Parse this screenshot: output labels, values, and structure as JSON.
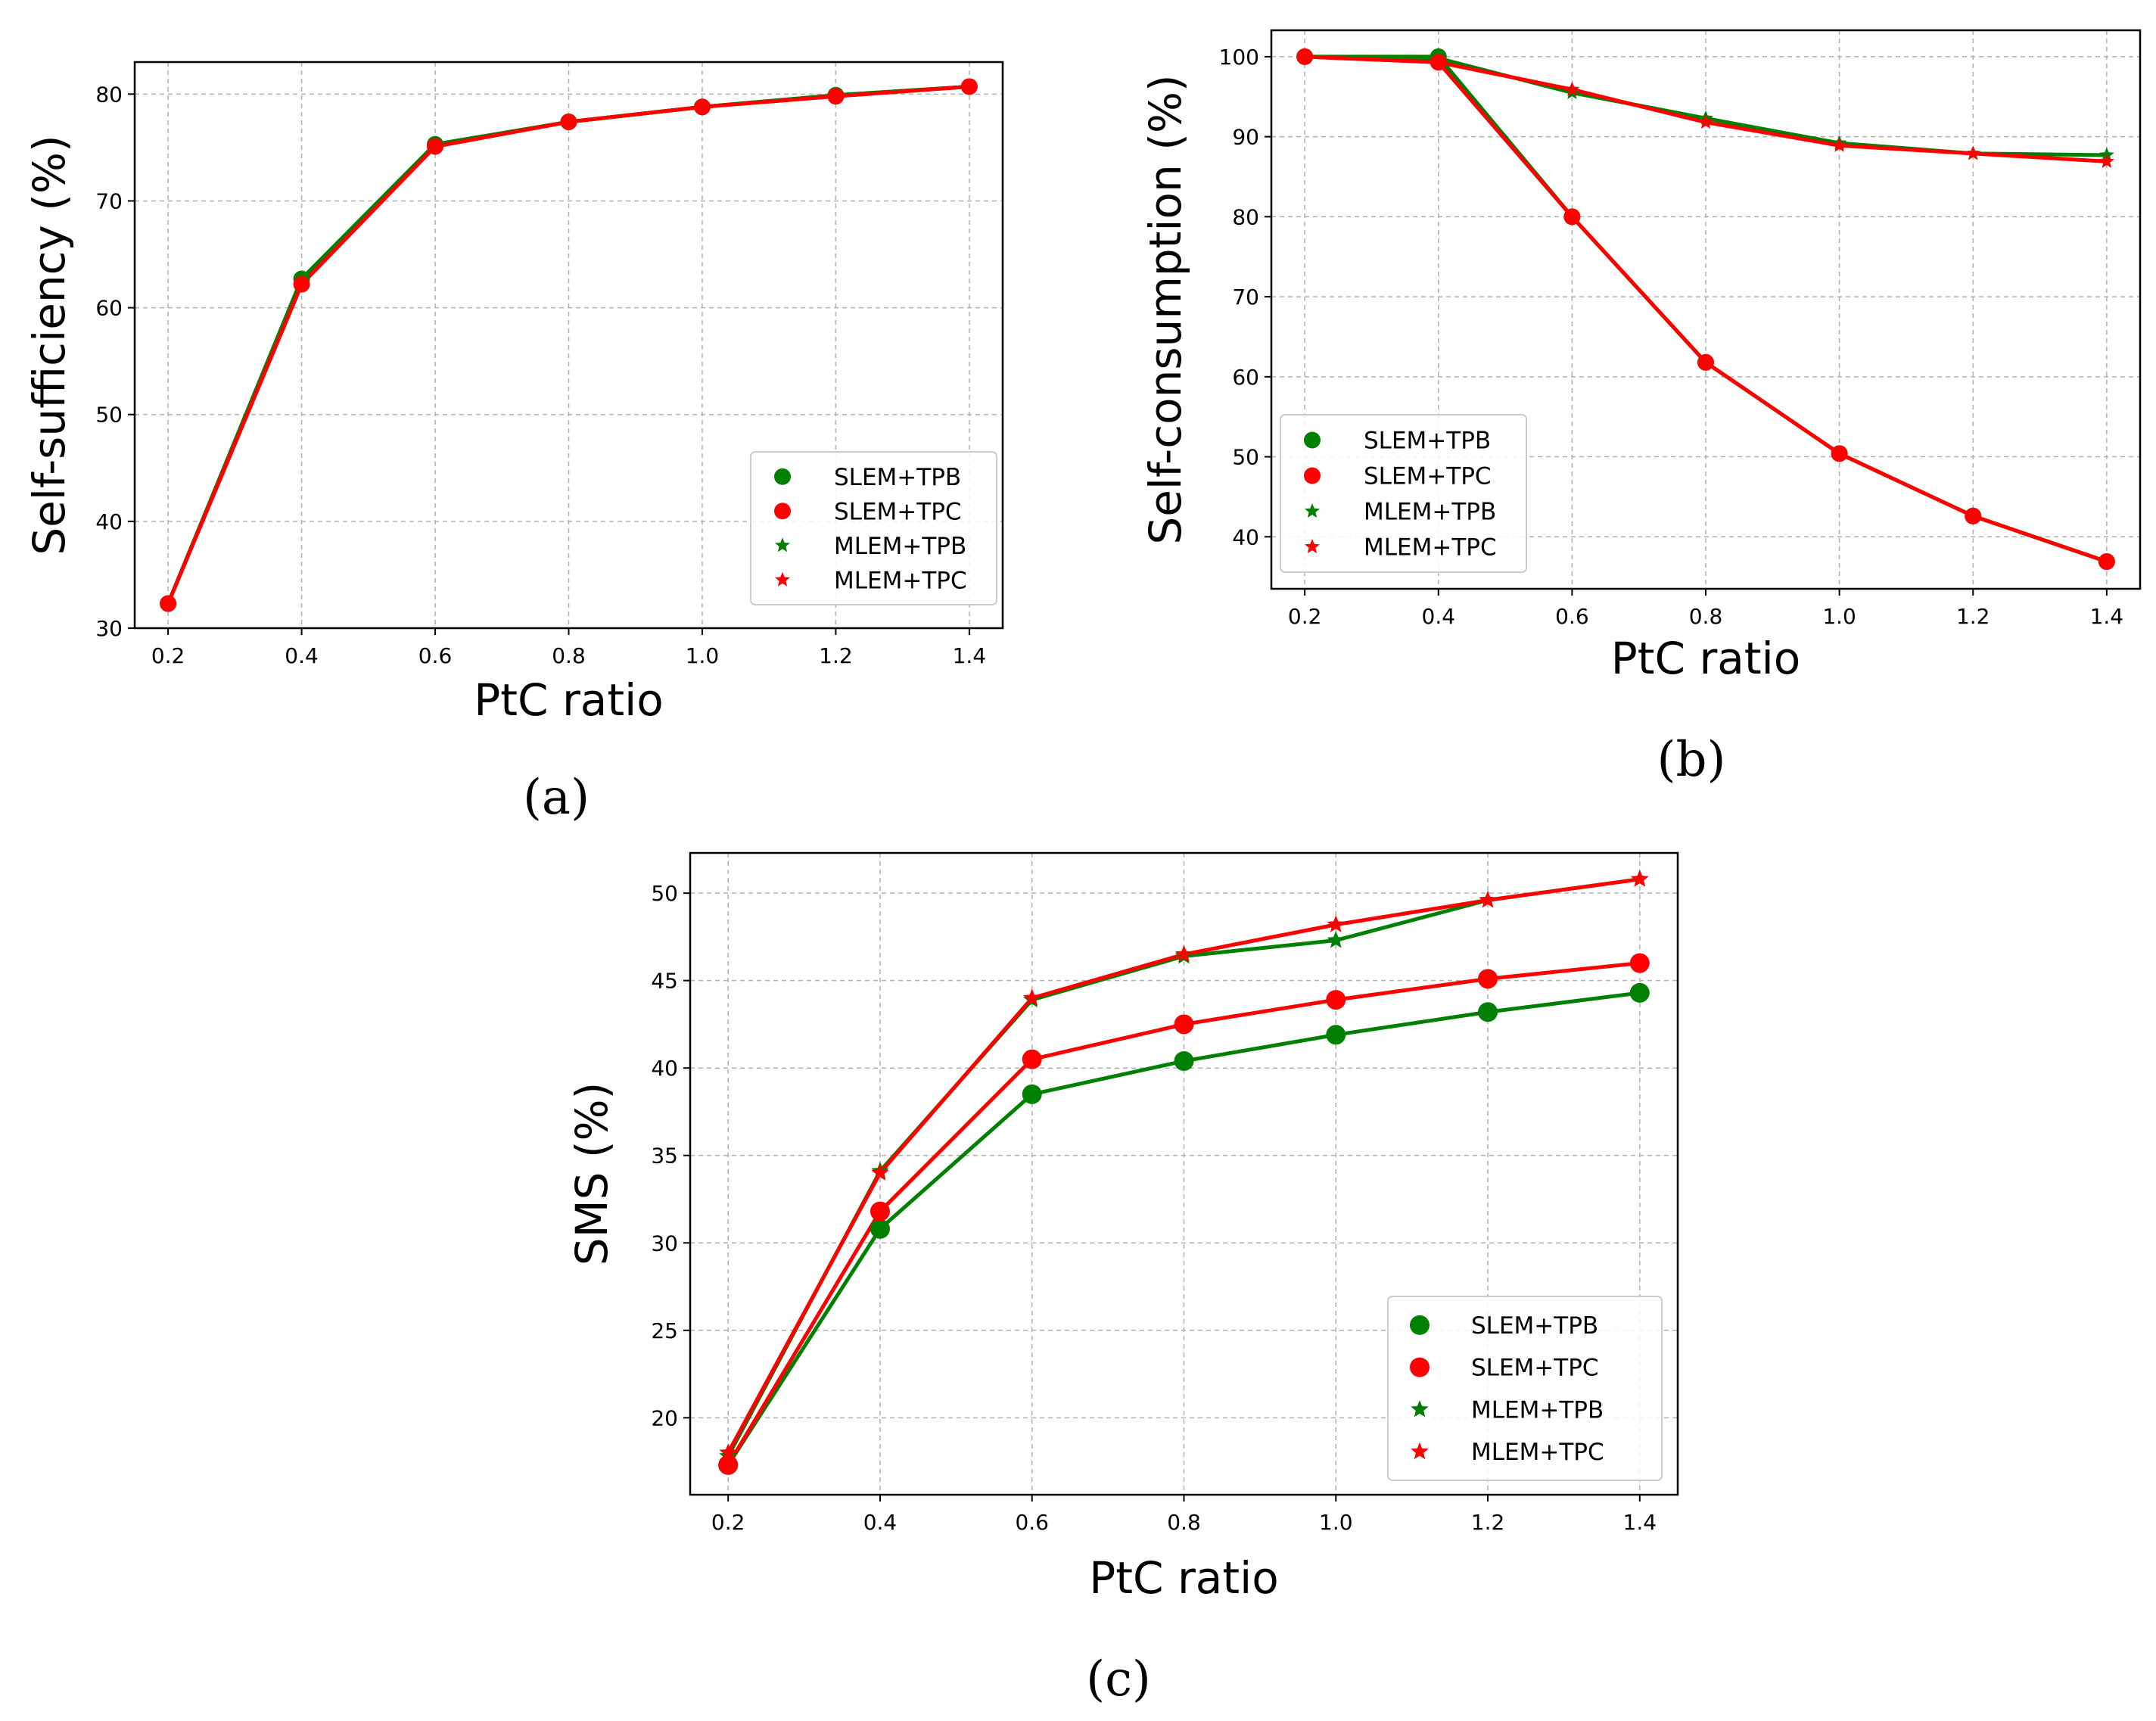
{
  "colors": {
    "green": "#008000",
    "red": "#ff0000"
  },
  "chart_data": [
    {
      "id": "a",
      "caption": "(a)",
      "type": "line",
      "xlabel": "PtC ratio",
      "ylabel": "Self-sufficiency (%)",
      "xlim": [
        0.15,
        1.45
      ],
      "ylim": [
        30,
        83
      ],
      "xticks": [
        0.2,
        0.4,
        0.6,
        0.8,
        1.0,
        1.2,
        1.4
      ],
      "xtick_labels": [
        "0.2",
        "0.4",
        "0.6",
        "0.8",
        "1.0",
        "1.2",
        "1.4"
      ],
      "yticks": [
        30,
        40,
        50,
        60,
        70,
        80
      ],
      "ytick_labels": [
        "30",
        "40",
        "50",
        "60",
        "70",
        "80"
      ],
      "grid": true,
      "legend_position": "lower-right",
      "x": [
        0.2,
        0.4,
        0.6,
        0.8,
        1.0,
        1.2,
        1.4
      ],
      "series": [
        {
          "name": "SLEM+TPB",
          "marker": "circle",
          "color": "green",
          "values": [
            32.3,
            62.7,
            75.3,
            77.4,
            78.8,
            79.9,
            80.7
          ]
        },
        {
          "name": "SLEM+TPC",
          "marker": "circle",
          "color": "red",
          "values": [
            32.3,
            62.2,
            75.1,
            77.4,
            78.8,
            79.8,
            80.7
          ]
        },
        {
          "name": "MLEM+TPB",
          "marker": "star",
          "color": "green",
          "values": [
            32.3,
            62.7,
            75.3,
            77.4,
            78.8,
            79.9,
            80.7
          ]
        },
        {
          "name": "MLEM+TPC",
          "marker": "star",
          "color": "red",
          "values": [
            32.3,
            62.2,
            75.1,
            77.4,
            78.8,
            79.8,
            80.7
          ]
        }
      ]
    },
    {
      "id": "b",
      "caption": "(b)",
      "type": "line",
      "xlabel": "PtC ratio",
      "ylabel": "Self-consumption (%)",
      "xlim": [
        0.15,
        1.45
      ],
      "ylim": [
        33.5,
        103.3
      ],
      "xticks": [
        0.2,
        0.4,
        0.6,
        0.8,
        1.0,
        1.2,
        1.4
      ],
      "xtick_labels": [
        "0.2",
        "0.4",
        "0.6",
        "0.8",
        "1.0",
        "1.2",
        "1.4"
      ],
      "yticks": [
        40,
        50,
        60,
        70,
        80,
        90,
        100
      ],
      "ytick_labels": [
        "40",
        "50",
        "60",
        "70",
        "80",
        "90",
        "100"
      ],
      "grid": true,
      "legend_position": "center-left",
      "x": [
        0.2,
        0.4,
        0.6,
        0.8,
        1.0,
        1.2,
        1.4
      ],
      "series": [
        {
          "name": "SLEM+TPB",
          "marker": "circle",
          "color": "green",
          "values": [
            100,
            100,
            80.0,
            61.8,
            50.4,
            42.6,
            36.9
          ]
        },
        {
          "name": "SLEM+TPC",
          "marker": "circle",
          "color": "red",
          "values": [
            100,
            99.3,
            80.0,
            61.8,
            50.4,
            42.6,
            36.9
          ]
        },
        {
          "name": "MLEM+TPB",
          "marker": "star",
          "color": "green",
          "values": [
            100,
            99.8,
            95.5,
            92.3,
            89.2,
            87.9,
            87.7
          ]
        },
        {
          "name": "MLEM+TPC",
          "marker": "star",
          "color": "red",
          "values": [
            100,
            99.3,
            95.9,
            91.8,
            88.9,
            87.9,
            86.9
          ]
        }
      ]
    },
    {
      "id": "c",
      "caption": "(c)",
      "type": "line",
      "xlabel": "PtC ratio",
      "ylabel": "SMS (%)",
      "xlim": [
        0.15,
        1.45
      ],
      "ylim": [
        15.6,
        52.3
      ],
      "xticks": [
        0.2,
        0.4,
        0.6,
        0.8,
        1.0,
        1.2,
        1.4
      ],
      "xtick_labels": [
        "0.2",
        "0.4",
        "0.6",
        "0.8",
        "1.0",
        "1.2",
        "1.4"
      ],
      "yticks": [
        20,
        25,
        30,
        35,
        40,
        45,
        50
      ],
      "ytick_labels": [
        "20",
        "25",
        "30",
        "35",
        "40",
        "45",
        "50"
      ],
      "grid": true,
      "legend_position": "lower-right",
      "x": [
        0.2,
        0.4,
        0.6,
        0.8,
        1.0,
        1.2,
        1.4
      ],
      "series": [
        {
          "name": "SLEM+TPB",
          "marker": "circle",
          "color": "green",
          "values": [
            17.3,
            30.8,
            38.5,
            40.4,
            41.9,
            43.2,
            44.3
          ]
        },
        {
          "name": "SLEM+TPC",
          "marker": "circle",
          "color": "red",
          "values": [
            17.3,
            31.8,
            40.5,
            42.5,
            43.9,
            45.1,
            46.0
          ]
        },
        {
          "name": "MLEM+TPB",
          "marker": "star",
          "color": "green",
          "values": [
            17.8,
            34.1,
            43.9,
            46.4,
            47.3,
            49.6,
            50.8
          ]
        },
        {
          "name": "MLEM+TPC",
          "marker": "star",
          "color": "red",
          "values": [
            18.0,
            34.0,
            44.0,
            46.5,
            48.2,
            49.6,
            50.8
          ]
        }
      ]
    }
  ]
}
